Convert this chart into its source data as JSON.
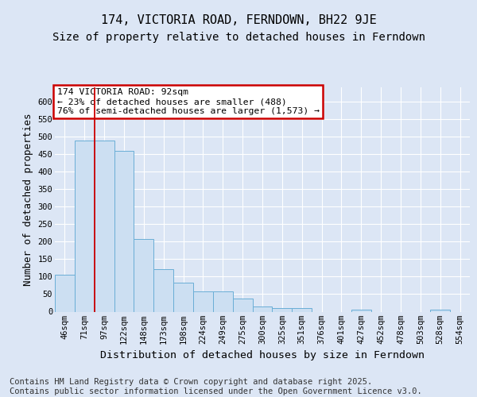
{
  "title1": "174, VICTORIA ROAD, FERNDOWN, BH22 9JE",
  "title2": "Size of property relative to detached houses in Ferndown",
  "xlabel": "Distribution of detached houses by size in Ferndown",
  "ylabel": "Number of detached properties",
  "categories": [
    "46sqm",
    "71sqm",
    "97sqm",
    "122sqm",
    "148sqm",
    "173sqm",
    "198sqm",
    "224sqm",
    "249sqm",
    "275sqm",
    "300sqm",
    "325sqm",
    "351sqm",
    "376sqm",
    "401sqm",
    "427sqm",
    "452sqm",
    "478sqm",
    "503sqm",
    "528sqm",
    "554sqm"
  ],
  "values": [
    105,
    488,
    488,
    458,
    207,
    122,
    82,
    57,
    57,
    38,
    15,
    10,
    10,
    0,
    0,
    6,
    0,
    0,
    0,
    6,
    0
  ],
  "bar_color": "#ccdff2",
  "bar_edge_color": "#6aaed6",
  "red_line_x": 1.5,
  "annotation_text": "174 VICTORIA ROAD: 92sqm\n← 23% of detached houses are smaller (488)\n76% of semi-detached houses are larger (1,573) →",
  "annotation_box_color": "#ffffff",
  "annotation_box_edge": "#cc0000",
  "ylim": [
    0,
    640
  ],
  "yticks": [
    0,
    50,
    100,
    150,
    200,
    250,
    300,
    350,
    400,
    450,
    500,
    550,
    600
  ],
  "footer": "Contains HM Land Registry data © Crown copyright and database right 2025.\nContains public sector information licensed under the Open Government Licence v3.0.",
  "background_color": "#dce6f5",
  "plot_background": "#dce6f5",
  "grid_color": "#ffffff",
  "title_fontsize": 11,
  "subtitle_fontsize": 10,
  "axis_label_fontsize": 9,
  "tick_fontsize": 7.5,
  "footer_fontsize": 7.5
}
